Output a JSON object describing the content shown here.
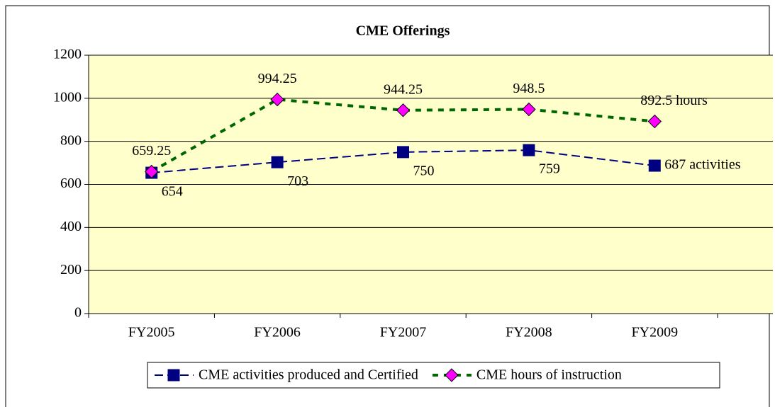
{
  "chart_data": {
    "type": "line",
    "title": "CME Offerings",
    "categories": [
      "FY2005",
      "FY2006",
      "FY2007",
      "FY2008",
      "FY2009"
    ],
    "series": [
      {
        "name": "CME activities produced and Certified",
        "color": "#000080",
        "marker": "square",
        "values": [
          654,
          703,
          750,
          759,
          687
        ],
        "value_labels": [
          "654",
          "703",
          "750",
          "759",
          "687 activities"
        ]
      },
      {
        "name": "CME hours of instruction",
        "color": "#006600",
        "marker_color": "#ff00ff",
        "marker": "diamond",
        "values": [
          659.25,
          994.25,
          944.25,
          948.5,
          892.5
        ],
        "value_labels": [
          "659.25",
          "994.25",
          "944.25",
          "948.5",
          "892.5 hours"
        ]
      }
    ],
    "ylim": [
      0,
      1200
    ],
    "yticks": [
      0,
      200,
      400,
      600,
      800,
      1000,
      1200
    ],
    "grid": true,
    "legend": "bottom",
    "plot_background": "#ffffcc"
  }
}
